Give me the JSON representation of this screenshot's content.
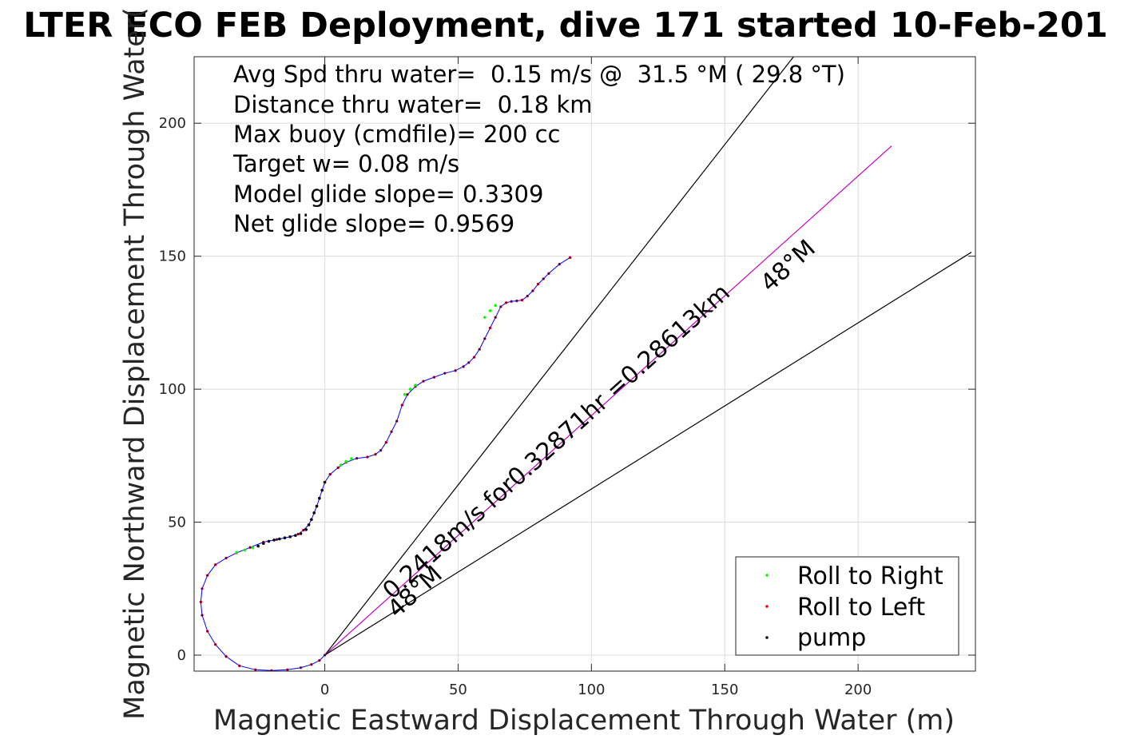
{
  "chart_data": {
    "type": "scatter",
    "title": "LTER ECO FEB Deployment, dive 171 started 10-Feb-201",
    "xlabel": "Magnetic Eastward Displacement Through Water (m)",
    "ylabel": "Magnetic Northward Displacement Through Water(",
    "xlim": [
      -49,
      244
    ],
    "ylim": [
      -6,
      225
    ],
    "xticks": [
      0,
      50,
      100,
      150,
      200
    ],
    "yticks": [
      0,
      50,
      100,
      150,
      200
    ],
    "grid": true,
    "legend_position": "bottom-right",
    "stats": [
      "Avg Spd thru water=  0.15 m/s @  31.5 °M ( 29.8 °T)",
      "Distance thru water=  0.18 km",
      "Max buoy (cmdfile)= 200 cc",
      "Target w= 0.08 m/s",
      "Model glide slope= 0.3309",
      "Net glide slope= 0.9569"
    ],
    "annotations": {
      "speed_label": "0.2418m/s for0.32871hr =0.28613km",
      "heading_label_upper": "48°M",
      "heading_label_lower": "48°M"
    },
    "heading_lines": [
      {
        "name": "upper bound",
        "x": [
          0,
          175.8
        ],
        "y": [
          0,
          225
        ],
        "color": "#000000"
      },
      {
        "name": "heading",
        "x": [
          0,
          212.6
        ],
        "y": [
          0,
          191.5
        ],
        "color": "#c000c0"
      },
      {
        "name": "lower bound",
        "x": [
          0,
          242.5
        ],
        "y": [
          0,
          151.5
        ],
        "color": "#000000"
      }
    ],
    "track": {
      "color": "#0000ff",
      "x": [
        0,
        -2,
        -5,
        -9,
        -14,
        -20,
        -26,
        -32,
        -37,
        -41,
        -44,
        -46,
        -46.5,
        -46,
        -44,
        -41,
        -37,
        -33,
        -28,
        -23,
        -18,
        -13,
        -10,
        -8,
        -6,
        -5,
        -4,
        -3,
        -2,
        -1,
        0,
        2,
        5,
        8,
        12,
        16,
        19,
        21,
        23,
        25,
        27,
        29,
        31,
        34,
        37,
        41,
        45,
        49,
        52,
        54,
        56,
        58,
        60,
        62,
        64,
        66,
        68,
        70,
        72,
        74,
        76,
        78,
        80,
        82,
        84,
        88,
        92
      ],
      "y": [
        0,
        -2,
        -3.5,
        -4.7,
        -5.5,
        -5.8,
        -5.5,
        -4,
        -0.5,
        4,
        9,
        15,
        20,
        25,
        30,
        34,
        36.5,
        38.5,
        40.5,
        42.5,
        43.5,
        44.5,
        45.5,
        47,
        49,
        51,
        53.5,
        56,
        59,
        62,
        65,
        68,
        70.5,
        72.5,
        74,
        74.5,
        75.5,
        77,
        80,
        84,
        88,
        94,
        98,
        101,
        103,
        104.5,
        106,
        107,
        108.5,
        110,
        112,
        115,
        119,
        123,
        127,
        131,
        132.5,
        133,
        133.2,
        133.5,
        135,
        137,
        139.5,
        141.5,
        143.5,
        147,
        149.5
      ]
    },
    "points": {
      "roll_to_right_x": [
        -33,
        -30,
        -27,
        6,
        8,
        10,
        30,
        32,
        34,
        60,
        62,
        64
      ],
      "roll_to_right_y": [
        38.7,
        39.5,
        40.4,
        71.5,
        72.8,
        73.9,
        98,
        100,
        101.5,
        127,
        129.5,
        131.5
      ],
      "pump_x": [
        -25,
        -23,
        -21,
        -19,
        -17,
        -15,
        -13,
        -11,
        -9,
        -7,
        -6,
        -5,
        -4,
        -3,
        -2,
        -1,
        0
      ],
      "pump_y": [
        41,
        42,
        42.8,
        43.3,
        43.7,
        44.1,
        44.5,
        45,
        45.7,
        47.2,
        49,
        51,
        53.5,
        56,
        59,
        62,
        65
      ]
    },
    "legend": [
      {
        "label": "Roll to Right",
        "color": "#00ff00"
      },
      {
        "label": "Roll to Left",
        "color": "#ff0000"
      },
      {
        "label": "pump",
        "color": "#000000"
      }
    ]
  }
}
